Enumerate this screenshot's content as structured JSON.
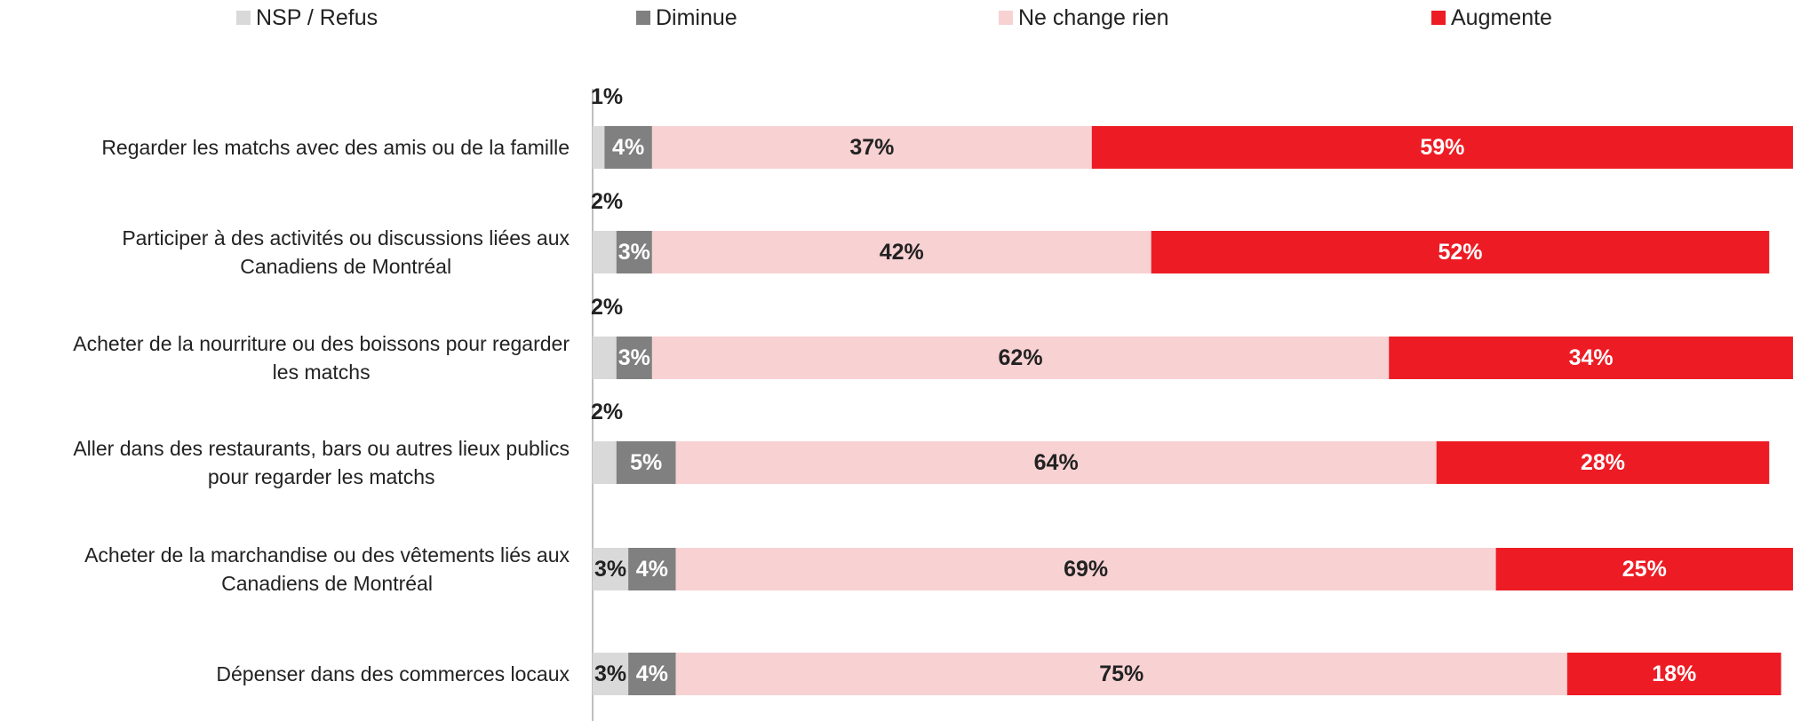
{
  "chart_data": {
    "type": "stacked-bar-horizontal",
    "categories": [
      "Regarder les matchs avec des amis ou de la famille",
      "Participer à des activités ou discussions liées aux\nCanadiens de Montréal",
      "Acheter de la nourriture ou des boissons pour regarder\nles matchs",
      "Aller dans des restaurants, bars ou autres lieux publics\npour regarder les matchs",
      "Acheter de la marchandise ou des vêtements liés aux\nCanadiens de Montréal",
      "Dépenser dans des commerces locaux"
    ],
    "series": [
      {
        "name": "NSP / Refus",
        "color": "#d9d9d9",
        "values": [
          1,
          2,
          2,
          2,
          3,
          3
        ],
        "value_labels": [
          "1%",
          "2%",
          "2%",
          "2%",
          "3%",
          "3%"
        ]
      },
      {
        "name": "Diminue",
        "color": "#808080",
        "values": [
          4,
          3,
          3,
          5,
          4,
          4
        ],
        "value_labels": [
          "4%",
          "3%",
          "3%",
          "5%",
          "4%",
          "4%"
        ]
      },
      {
        "name": "Ne change rien",
        "color": "#f8d1d3",
        "values": [
          37,
          42,
          62,
          64,
          69,
          75
        ],
        "value_labels": [
          "37%",
          "42%",
          "62%",
          "64%",
          "69%",
          "75%"
        ]
      },
      {
        "name": "Augmente",
        "color": "#ed1c24",
        "values": [
          59,
          52,
          34,
          28,
          25,
          18
        ],
        "value_labels": [
          "59%",
          "52%",
          "34%",
          "28%",
          "25%",
          "18%"
        ]
      }
    ],
    "xlim": [
      0,
      101
    ],
    "legend": "top"
  }
}
